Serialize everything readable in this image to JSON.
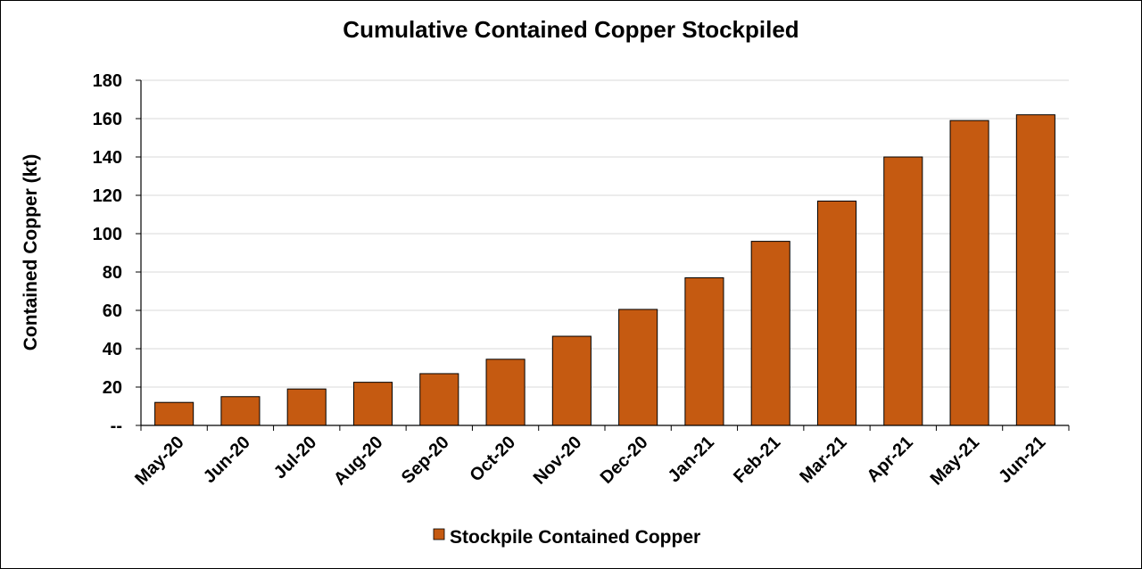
{
  "chart_data": {
    "type": "bar",
    "title": "Cumulative Contained Copper Stockpiled",
    "ylabel": "Contained Copper (kt)",
    "xlabel": "",
    "ylim": [
      0,
      180
    ],
    "yticks": [
      0,
      20,
      40,
      60,
      80,
      100,
      120,
      140,
      160,
      180
    ],
    "ytick_labels": [
      "--",
      "20",
      "40",
      "60",
      "80",
      "100",
      "120",
      "140",
      "160",
      "180"
    ],
    "grid": true,
    "legend_position": "bottom",
    "categories": [
      "May-20",
      "Jun-20",
      "Jul-20",
      "Aug-20",
      "Sep-20",
      "Oct-20",
      "Nov-20",
      "Dec-20",
      "Jan-21",
      "Feb-21",
      "Mar-21",
      "Apr-21",
      "May-21",
      "Jun-21"
    ],
    "series": [
      {
        "name": "Stockpile Contained Copper",
        "color": "#C55A11",
        "values": [
          12,
          15,
          19,
          22.5,
          27,
          34.5,
          46.5,
          60.5,
          77,
          96,
          117,
          140,
          159,
          162
        ]
      }
    ]
  }
}
